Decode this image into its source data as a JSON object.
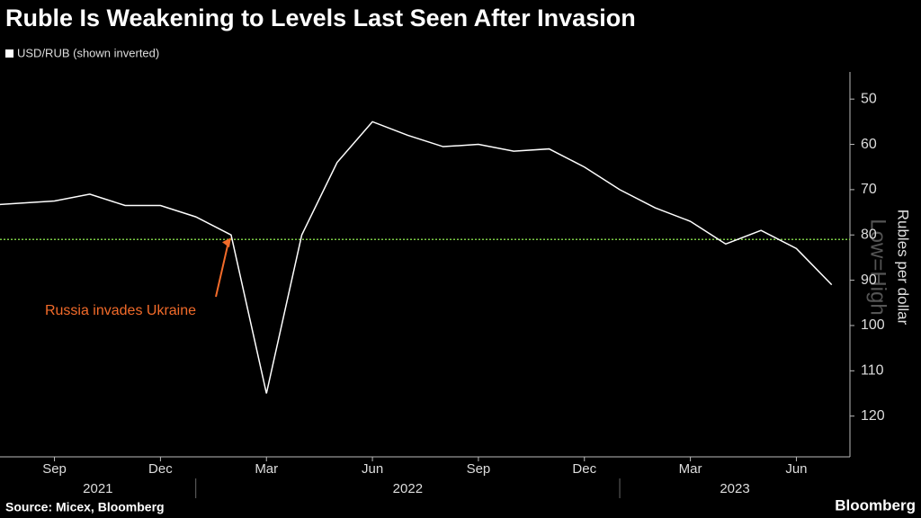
{
  "chart_data": {
    "type": "line",
    "title": "Ruble Is Weakening to Levels Last Seen After Invasion",
    "x": [
      "2021-07",
      "2021-08",
      "2021-09",
      "2021-10",
      "2021-11",
      "2021-12",
      "2022-01",
      "2022-02",
      "2022-03",
      "2022-04",
      "2022-05",
      "2022-06",
      "2022-07",
      "2022-08",
      "2022-09",
      "2022-10",
      "2022-11",
      "2022-12",
      "2023-01",
      "2023-02",
      "2023-03",
      "2023-04",
      "2023-05",
      "2023-06",
      "2023-07"
    ],
    "series": [
      {
        "name": "USD/RUB (shown inverted)",
        "color": "#ffffff",
        "values": [
          73.5,
          73,
          72.5,
          71,
          73.5,
          73.5,
          76,
          80,
          115,
          80,
          64,
          55,
          58,
          60.5,
          60,
          61.5,
          61,
          65,
          70,
          74,
          77,
          82,
          79,
          83,
          91
        ]
      }
    ],
    "xlim": [
      "2021-07",
      "2023-08"
    ],
    "xticks": [
      {
        "value": "2021-09",
        "label": "Sep"
      },
      {
        "value": "2021-12",
        "label": "Dec"
      },
      {
        "value": "2022-03",
        "label": "Mar"
      },
      {
        "value": "2022-06",
        "label": "Jun"
      },
      {
        "value": "2022-09",
        "label": "Sep"
      },
      {
        "value": "2022-12",
        "label": "Dec"
      },
      {
        "value": "2023-03",
        "label": "Mar"
      },
      {
        "value": "2023-06",
        "label": "Jun"
      }
    ],
    "years": [
      2021,
      2022,
      2023
    ],
    "ylim": [
      45,
      129
    ],
    "inverted": true,
    "yticks": [
      50,
      60,
      70,
      80,
      90,
      100,
      110,
      120
    ],
    "ylabel": "Rubles per dollar",
    "axis_note": "Low=High",
    "reference_line": {
      "value": 81,
      "color": "#7ac943"
    },
    "annotation": {
      "text": "Russia invades Ukraine",
      "x": "2022-02",
      "color": "#f26b2a"
    },
    "source": "Source: Micex, Bloomberg",
    "brand": "Bloomberg"
  }
}
